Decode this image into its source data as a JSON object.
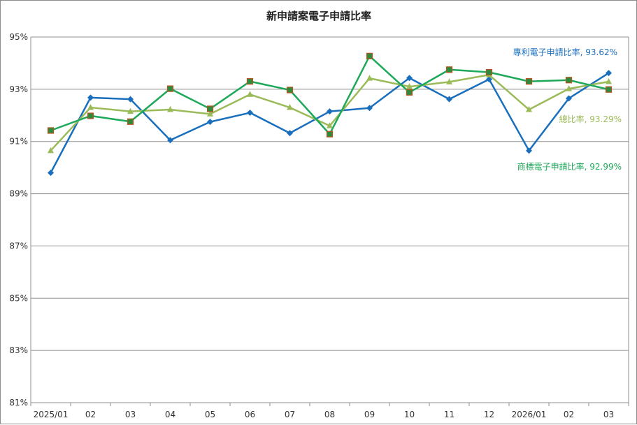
{
  "chart_data": {
    "type": "line",
    "title": "新申請案電子申請比率",
    "categories": [
      "2025/01",
      "02",
      "03",
      "04",
      "05",
      "06",
      "07",
      "08",
      "09",
      "10",
      "11",
      "12",
      "2026/01",
      "02",
      "03"
    ],
    "y_ticks": [
      "95%",
      "93%",
      "91%",
      "89%",
      "87%",
      "85%",
      "83%",
      "81%"
    ],
    "ylim": [
      81,
      95
    ],
    "grid": "horizontal",
    "series": [
      {
        "key": "patent",
        "color": "#1a6fbd",
        "marker": "diamond",
        "values": [
          89.8,
          92.68,
          92.62,
          91.05,
          91.75,
          92.1,
          91.32,
          92.15,
          92.28,
          93.43,
          92.62,
          93.38,
          90.65,
          92.65,
          93.62
        ],
        "annotation": "專利電子申請比率, 93.62%"
      },
      {
        "key": "total",
        "color": "#9bbb59",
        "marker": "triangle",
        "values": [
          90.65,
          92.3,
          92.15,
          92.22,
          92.05,
          92.8,
          92.3,
          91.6,
          93.42,
          93.1,
          93.28,
          93.55,
          92.22,
          93.02,
          93.29
        ],
        "annotation": "總比率, 93.29%"
      },
      {
        "key": "trademark",
        "color": "#1ea85a",
        "marker": "square",
        "values": [
          91.42,
          91.98,
          91.76,
          93.02,
          92.25,
          93.3,
          92.97,
          91.28,
          94.27,
          92.88,
          93.75,
          93.65,
          93.3,
          93.35,
          92.99
        ],
        "annotation": "商標電子申請比率, 92.99%"
      }
    ]
  }
}
